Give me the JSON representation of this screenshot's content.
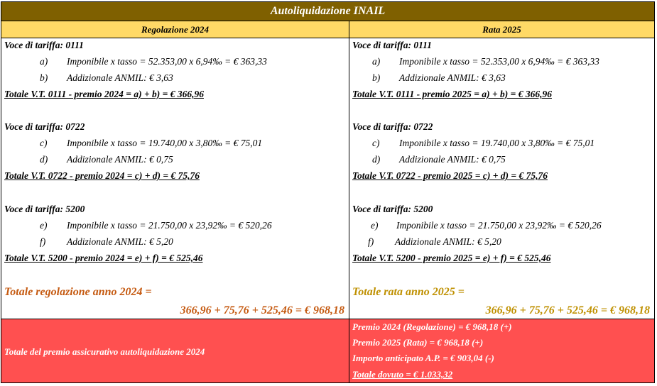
{
  "title": "Autoliquidazione INAIL",
  "columns": {
    "left_header": "Regolazione 2024",
    "right_header": "Rata 2025"
  },
  "left": {
    "vt1_title": "Voce di tariffa: 0111",
    "vt1_a_letter": "a)",
    "vt1_a": "Imponibile x tasso = 52.353,00 x 6,94‰ = € 363,33",
    "vt1_b_letter": "b)",
    "vt1_b": "Addizionale ANMIL: € 3,63",
    "vt1_total": "Totale V.T. 0111 - premio 2024 = a) + b) = € 366,96",
    "vt2_title": "Voce di tariffa: 0722",
    "vt2_c_letter": "c)",
    "vt2_c": "Imponibile x tasso = 19.740,00 x 3,80‰ = € 75,01",
    "vt2_d_letter": "d)",
    "vt2_d": "Addizionale ANMIL: € 0,75",
    "vt2_total": "Totale V.T. 0722 - premio 2024 = c) + d) = € 75,76",
    "vt3_title": "Voce di tariffa: 5200",
    "vt3_e_letter": "e)",
    "vt3_e": "Imponibile x tasso = 21.750,00 x 23,92‰ = € 520,26",
    "vt3_f_letter": "f)",
    "vt3_f": "Addizionale ANMIL: € 5,20",
    "vt3_total": "Totale V.T. 5200 - premio 2024 = e) + f) = € 525,46",
    "grand_label": "Totale regolazione anno 2024 =",
    "grand_value": "366,96 + 75,76 + 525,46 = € 968,18"
  },
  "right": {
    "vt1_title": "Voce di tariffa: 0111",
    "vt1_a_letter": "a)",
    "vt1_a": "Imponibile x tasso = 52.353,00 x 6,94‰ = € 363,33",
    "vt1_b_letter": "b)",
    "vt1_b": "Addizionale ANMIL: € 3,63",
    "vt1_total": "Totale V.T. 0111 - premio 2025 = a) + b) = € 366,96",
    "vt2_title": "Voce di tariffa: 0722",
    "vt2_c_letter": "c)",
    "vt2_c": "Imponibile x tasso = 19.740,00 x 3,80‰ = € 75,01",
    "vt2_d_letter": "d)",
    "vt2_d": "Addizionale ANMIL: € 0,75",
    "vt2_total": "Totale V.T. 0722 - premio 2025 = c) + d) = € 75,76",
    "vt3_title": "Voce di tariffa: 5200",
    "vt3_e_letter": "e)",
    "vt3_e": "Imponibile x tasso = 21.750,00 x 23,92‰ = € 520,26",
    "vt3_f_letter": "f)",
    "vt3_f": "Addizionale ANMIL: € 5,20",
    "vt3_total": "Totale V.T. 5200 - premio 2025 = e) + f) = € 525,46",
    "grand_label": "Totale rata anno 2025 =",
    "grand_value": "366,96 + 75,76 + 525,46 = € 968,18"
  },
  "summary": {
    "label": "Totale del premio assicurativo autoliquidazione 2024",
    "line1": "Premio 2024 (Regolazione) = € 968,18 (+)",
    "line2": "Premio 2025 (Rata) = € 968,18 (+)",
    "line3": "Importo anticipato A.P. = € 903,04 (-)",
    "line4": "Totale dovuto = € 1.033,32"
  },
  "colors": {
    "title_bg": "#7f6000",
    "header_bg": "#ffd966",
    "summary_bg": "#ff5050",
    "left_total_color": "#c55a11",
    "right_total_color": "#bf9000"
  }
}
